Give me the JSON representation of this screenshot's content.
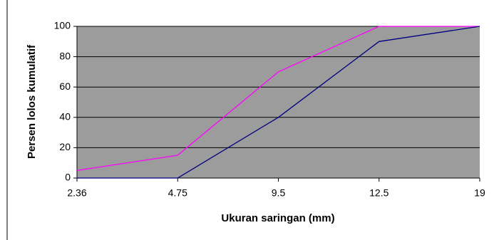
{
  "chart_data": {
    "type": "line",
    "x_label": "Ukuran saringan (mm)",
    "y_label": "Persen lolos kumulatif",
    "categories": [
      "2.36",
      "4.75",
      "9.5",
      "12.5",
      "19"
    ],
    "series": [
      {
        "color": "#ff00ff",
        "values": [
          5,
          15,
          70,
          100,
          100
        ]
      },
      {
        "color": "#000080",
        "values": [
          0,
          0,
          40,
          90,
          100
        ]
      }
    ],
    "ylim": [
      0,
      100
    ],
    "yticks": [
      0,
      20,
      40,
      60,
      80,
      100
    ],
    "grid": true
  }
}
